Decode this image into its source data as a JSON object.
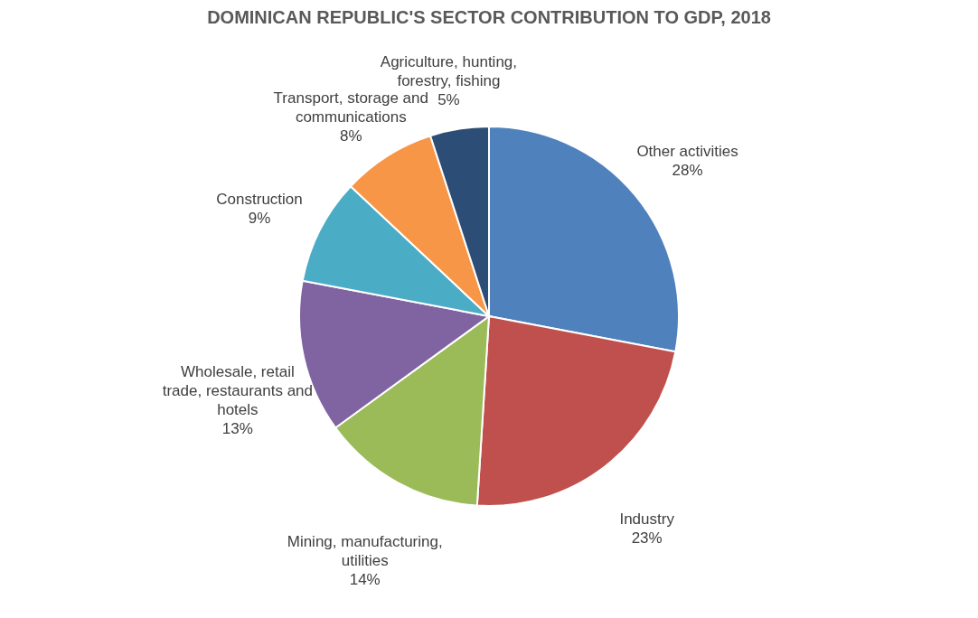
{
  "chart_data": {
    "type": "pie",
    "title": "DOMINICAN REPUBLIC'S SECTOR CONTRIBUTION TO GDP, 2018",
    "categories": [
      "Other activities",
      "Industry",
      "Mining, manufacturing, utilities",
      "Wholesale, retail trade, restaurants and hotels",
      "Construction",
      "Transport, storage and communications",
      "Agriculture, hunting, forestry, fishing"
    ],
    "values": [
      28,
      23,
      14,
      13,
      9,
      8,
      5
    ],
    "value_labels": [
      "28%",
      "23%",
      "14%",
      "13%",
      "9%",
      "8%",
      "5%"
    ],
    "colors": [
      "#4f81bd",
      "#c0504d",
      "#9bbb59",
      "#8064a2",
      "#4bacc6",
      "#f79646",
      "#2c4d75"
    ],
    "legend": false
  }
}
